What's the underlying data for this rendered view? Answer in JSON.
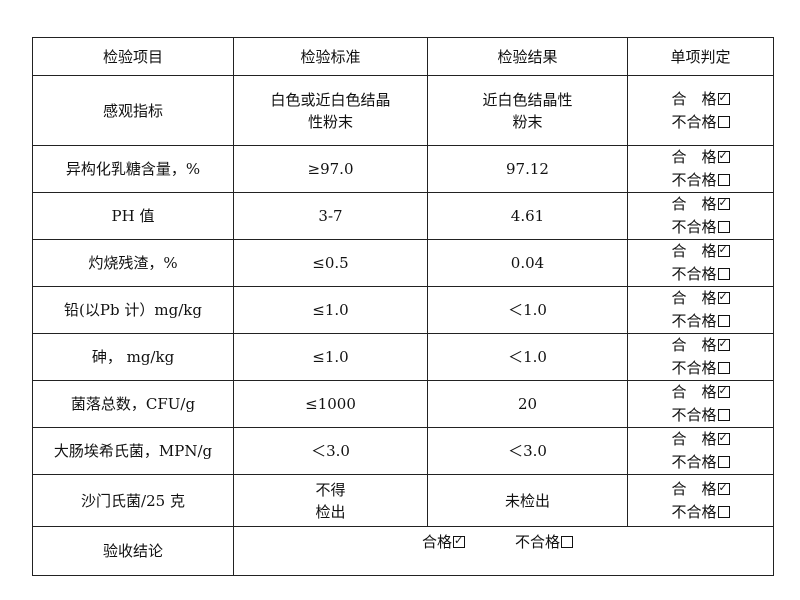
{
  "headers": [
    "检验项目",
    "检验标准",
    "检验结果",
    "单项判定"
  ],
  "pass_label": "合　格",
  "fail_label": "不合格",
  "rows": [
    {
      "item": "感观指标",
      "standard": [
        "白色或近白色结晶",
        "性粉末"
      ],
      "result": [
        "近白色结晶性",
        "粉末"
      ],
      "pass": true
    },
    {
      "item": "异构化乳糖含量，%",
      "standard": [
        "≥97.0"
      ],
      "result": [
        "97.12"
      ],
      "pass": true
    },
    {
      "item": "PH 值",
      "standard": [
        "3-7"
      ],
      "result": [
        "4.61"
      ],
      "pass": true
    },
    {
      "item": "灼烧残渣，%",
      "standard": [
        "≤0.5"
      ],
      "result": [
        "0.04"
      ],
      "pass": true
    },
    {
      "item": "铅(以Pb 计）mg/kg",
      "standard": [
        "≤1.0"
      ],
      "result": [
        "＜1.0"
      ],
      "pass": true
    },
    {
      "item": "砷，  mg/kg",
      "standard": [
        "≤1.0"
      ],
      "result": [
        "＜1.0"
      ],
      "pass": true
    },
    {
      "item": "菌落总数，CFU/g",
      "standard": [
        "≤1000"
      ],
      "result": [
        "20"
      ],
      "pass": true
    },
    {
      "item": "大肠埃希氏菌，MPN/g",
      "standard": [
        "＜3.0"
      ],
      "result": [
        "＜3.0"
      ],
      "pass": true
    },
    {
      "item": "沙门氏菌/25 克",
      "standard": [
        "不得",
        "检出"
      ],
      "result": [
        "未检出"
      ],
      "pass": true
    }
  ],
  "conclusion": {
    "label": "验收结论",
    "pass_label": "合格",
    "fail_label": "不合格",
    "pass": true
  }
}
